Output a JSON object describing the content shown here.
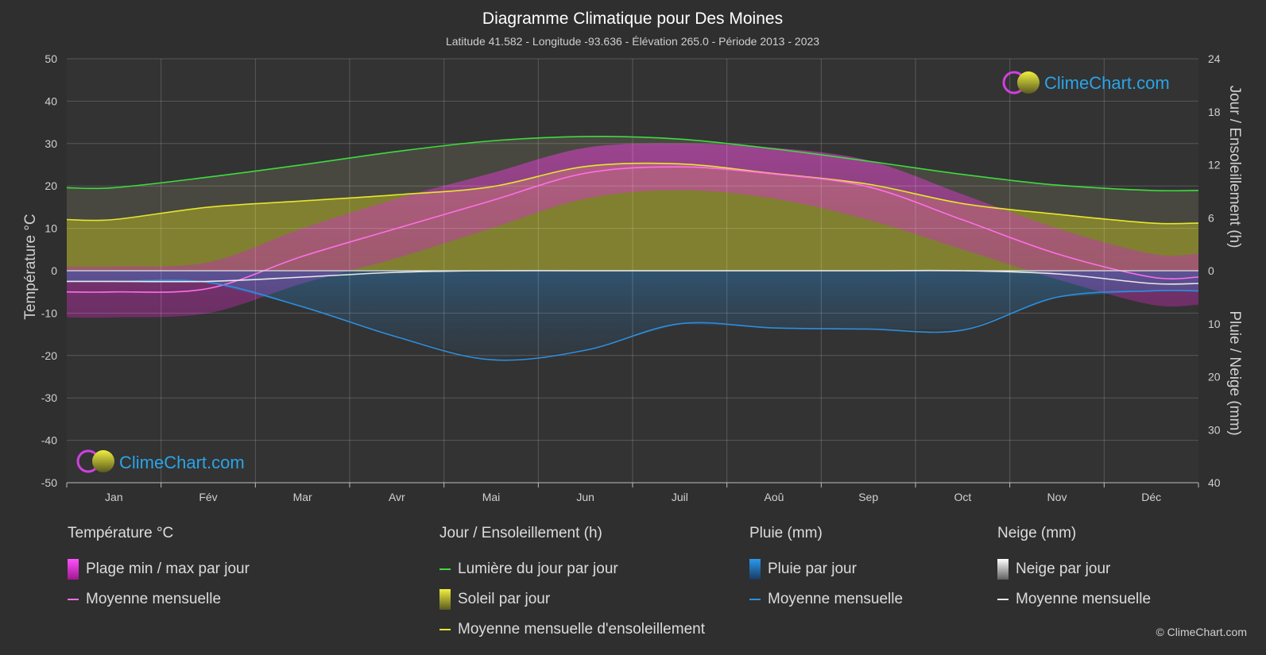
{
  "header": {
    "title": "Diagramme Climatique pour Des Moines",
    "subtitle": "Latitude 41.582 - Longitude -93.636 - Élévation 265.0 - Période 2013 - 2023"
  },
  "chart_data": {
    "type": "area",
    "categories": [
      "Jan",
      "Fév",
      "Mar",
      "Avr",
      "Mai",
      "Jun",
      "Juil",
      "Aoû",
      "Sep",
      "Oct",
      "Nov",
      "Déc"
    ],
    "y_left": {
      "label": "Température °C",
      "range": [
        -50,
        50
      ],
      "ticks": [
        50,
        40,
        30,
        20,
        10,
        0,
        -10,
        -20,
        -30,
        -40,
        -50
      ]
    },
    "y_right_top": {
      "label": "Jour / Ensoleillement (h)",
      "range": [
        0,
        24
      ],
      "ticks": [
        24,
        18,
        12,
        6,
        0
      ]
    },
    "y_right_bottom": {
      "label": "Pluie / Neige (mm)",
      "range": [
        0,
        40
      ],
      "ticks": [
        0,
        10,
        20,
        30,
        40
      ]
    },
    "grid": true,
    "series": [
      {
        "name": "Lumière du jour par jour",
        "unit": "h",
        "color": "#3ddc3d",
        "values": [
          9.4,
          10.6,
          12.0,
          13.5,
          14.7,
          15.2,
          14.9,
          13.8,
          12.4,
          10.9,
          9.7,
          9.1
        ]
      },
      {
        "name": "Moyenne mensuelle d'ensoleillement",
        "unit": "h",
        "color": "#e6e62e",
        "values": [
          5.8,
          7.2,
          7.9,
          8.6,
          9.5,
          11.8,
          12.1,
          11.0,
          9.8,
          7.6,
          6.4,
          5.4
        ]
      },
      {
        "name": "Moyenne mensuelle",
        "group": "Température °C",
        "unit": "°C",
        "color": "#ff6ee6",
        "values": [
          -5.0,
          -4.2,
          3.4,
          10.0,
          16.5,
          23.0,
          24.5,
          22.8,
          19.8,
          12.0,
          4.0,
          -1.5
        ]
      },
      {
        "name": "Moyenne mensuelle",
        "group": "Pluie (mm)",
        "unit": "mm",
        "color": "#2a8fe0",
        "values": [
          2.0,
          2.2,
          6.8,
          12.5,
          16.8,
          15.0,
          10.0,
          10.8,
          11.0,
          11.2,
          5.0,
          3.8
        ]
      },
      {
        "name": "Moyenne mensuelle",
        "group": "Neige (mm)",
        "unit": "mm",
        "color": "#e8e8e8",
        "values": [
          2.0,
          2.0,
          1.2,
          0.3,
          0.0,
          0.0,
          0.0,
          0.0,
          0.0,
          0.0,
          0.6,
          2.4
        ]
      }
    ],
    "temperature_daily_range": {
      "min": [
        -11,
        -10,
        -3,
        3,
        10,
        17,
        19,
        17,
        12,
        5,
        -2,
        -8
      ],
      "max": [
        1,
        2,
        10,
        17,
        23,
        29,
        30,
        29,
        26,
        18,
        10,
        4
      ]
    }
  },
  "brand": {
    "name": "ClimeChart.com"
  },
  "legend": {
    "groups": [
      {
        "title": "Température °C",
        "items": [
          {
            "label": "Plage min / max par jour",
            "kind": "box",
            "color": "#e040d0"
          },
          {
            "label": "Moyenne mensuelle",
            "kind": "line",
            "color": "#ff6ee6"
          }
        ]
      },
      {
        "title": "Jour / Ensoleillement (h)",
        "items": [
          {
            "label": "Lumière du jour par jour",
            "kind": "line",
            "color": "#3ddc3d"
          },
          {
            "label": "Soleil par jour",
            "kind": "box",
            "color": "#c8c830"
          },
          {
            "label": "Moyenne mensuelle d'ensoleillement",
            "kind": "line",
            "color": "#e6e62e"
          }
        ]
      },
      {
        "title": "Pluie (mm)",
        "items": [
          {
            "label": "Pluie par jour",
            "kind": "box",
            "color": "#2a8fe0"
          },
          {
            "label": "Moyenne mensuelle",
            "kind": "line",
            "color": "#2a8fe0"
          }
        ]
      },
      {
        "title": "Neige (mm)",
        "items": [
          {
            "label": "Neige par jour",
            "kind": "box",
            "color": "#e8e8e8"
          },
          {
            "label": "Moyenne mensuelle",
            "kind": "line",
            "color": "#e8e8e8"
          }
        ]
      }
    ]
  },
  "copyright": "© ClimeChart.com"
}
